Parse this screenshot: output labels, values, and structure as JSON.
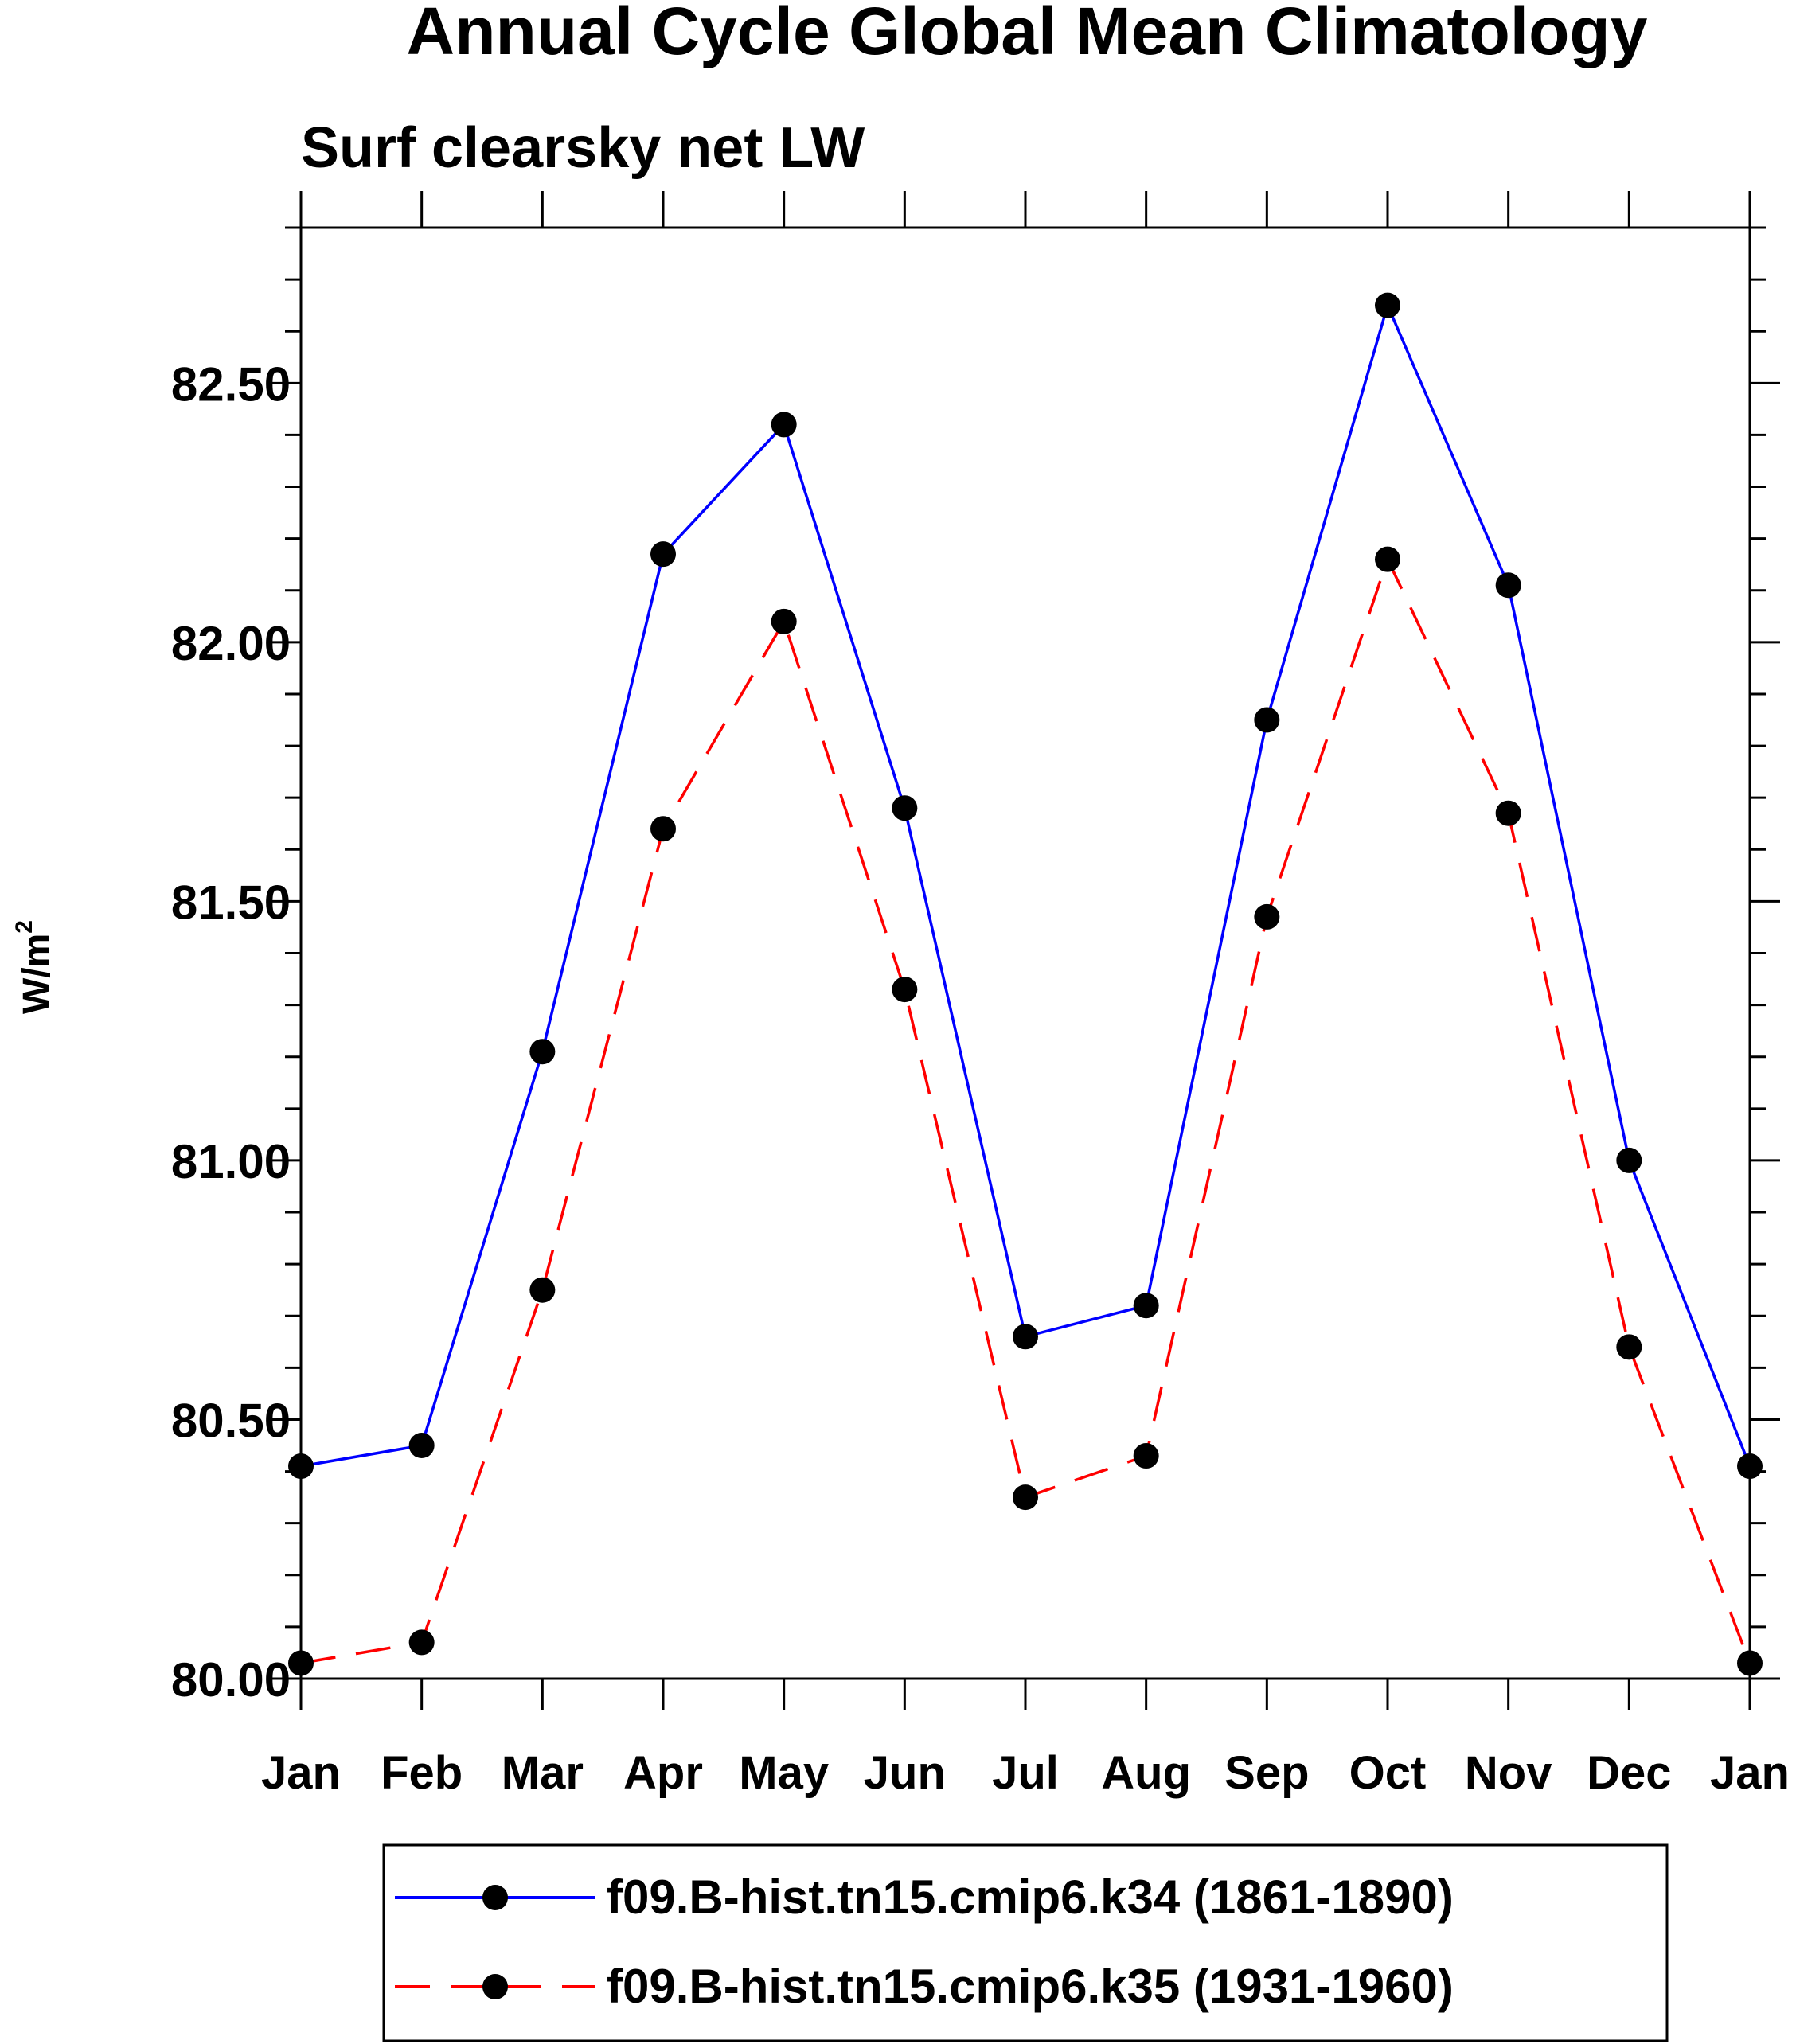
{
  "chart_data": {
    "type": "line",
    "title": "Annual Cycle Global Mean Climatology",
    "subtitle": "Surf clearsky net LW",
    "xlabel": "",
    "ylabel": "W/m",
    "ylabel_superscript": "2",
    "categories": [
      "Jan",
      "Feb",
      "Mar",
      "Apr",
      "May",
      "Jun",
      "Jul",
      "Aug",
      "Sep",
      "Oct",
      "Nov",
      "Dec",
      "Jan"
    ],
    "ylim": [
      80.0,
      82.8
    ],
    "yticks": [
      80.0,
      80.5,
      81.0,
      81.5,
      82.0,
      82.5
    ],
    "ytick_labels": [
      "80.00",
      "80.50",
      "81.00",
      "81.50",
      "82.00",
      "82.50"
    ],
    "grid": false,
    "legend_position": "bottom-center",
    "series": [
      {
        "name": "f09.B-hist.tn15.cmip6.k34 (1861-1890)",
        "color": "#0000ff",
        "style": "solid",
        "marker": "filled-circle",
        "values": [
          80.41,
          80.45,
          81.21,
          82.17,
          82.42,
          81.68,
          80.66,
          80.72,
          81.85,
          82.65,
          82.11,
          81.0,
          80.41
        ]
      },
      {
        "name": "f09.B-hist.tn15.cmip6.k35 (1931-1960)",
        "color": "#ff0000",
        "style": "dashed",
        "marker": "filled-circle",
        "values": [
          80.03,
          80.07,
          80.75,
          81.64,
          82.04,
          81.33,
          80.35,
          80.43,
          81.47,
          82.16,
          81.67,
          80.64,
          80.03
        ]
      }
    ]
  }
}
